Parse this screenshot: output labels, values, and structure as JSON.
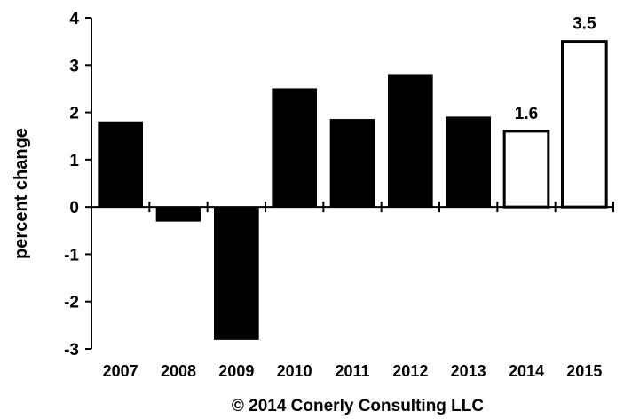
{
  "chart_data": {
    "type": "bar",
    "categories": [
      "2007",
      "2008",
      "2009",
      "2010",
      "2011",
      "2012",
      "2013",
      "2014",
      "2015"
    ],
    "values": [
      1.8,
      -0.3,
      -2.8,
      2.5,
      1.85,
      2.8,
      1.9,
      1.6,
      3.5
    ],
    "forecast": [
      false,
      false,
      false,
      false,
      false,
      false,
      false,
      true,
      true
    ],
    "data_labels": [
      "",
      "",
      "",
      "",
      "",
      "",
      "",
      "1.6",
      "3.5"
    ],
    "ylabel": "percent change",
    "xlabel": "",
    "ylim": [
      -3,
      4
    ],
    "yticks": [
      "4",
      "3",
      "2",
      "1",
      "0",
      "-1",
      "-2",
      "-3"
    ],
    "credit": "© 2014 Conerly Consulting LLC",
    "grid": false,
    "colors": {
      "actual": "#000000",
      "forecast": "#ffffff",
      "outline": "#000000"
    }
  }
}
